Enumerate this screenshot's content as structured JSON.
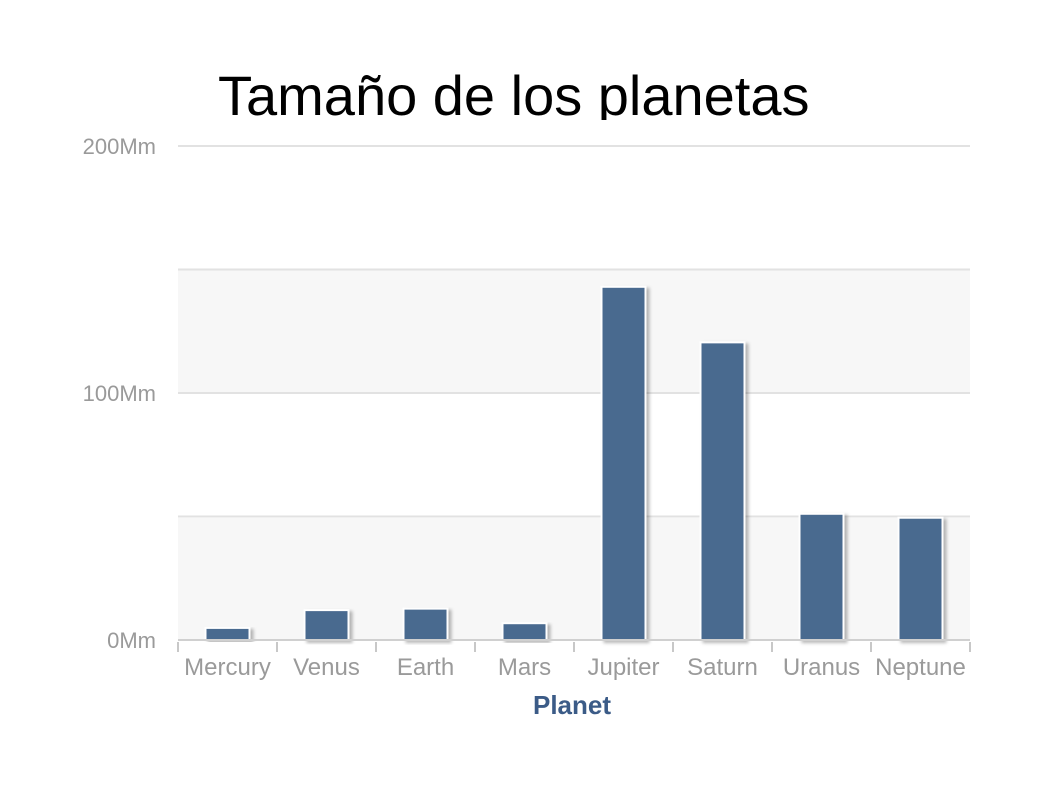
{
  "title": "Tamaño de los planetas",
  "chart_data": {
    "type": "bar",
    "categories": [
      "Mercury",
      "Venus",
      "Earth",
      "Mars",
      "Jupiter",
      "Saturn",
      "Uranus",
      "Neptune"
    ],
    "series": [
      {
        "values": [
          4.9,
          12.1,
          12.7,
          6.8,
          143,
          120.5,
          51.1,
          49.5
        ]
      }
    ],
    "xlabel": "Planet",
    "ylabel": "",
    "ylim": [
      0,
      200
    ],
    "y_ticks": [
      {
        "value": 0,
        "label": "0Mm"
      },
      {
        "value": 100,
        "label": "100Mm"
      },
      {
        "value": 200,
        "label": "200Mm"
      }
    ],
    "minor_gridlines": [
      50,
      150
    ],
    "grid": true,
    "bar_color": "#4a6a8f",
    "legend": "none"
  }
}
